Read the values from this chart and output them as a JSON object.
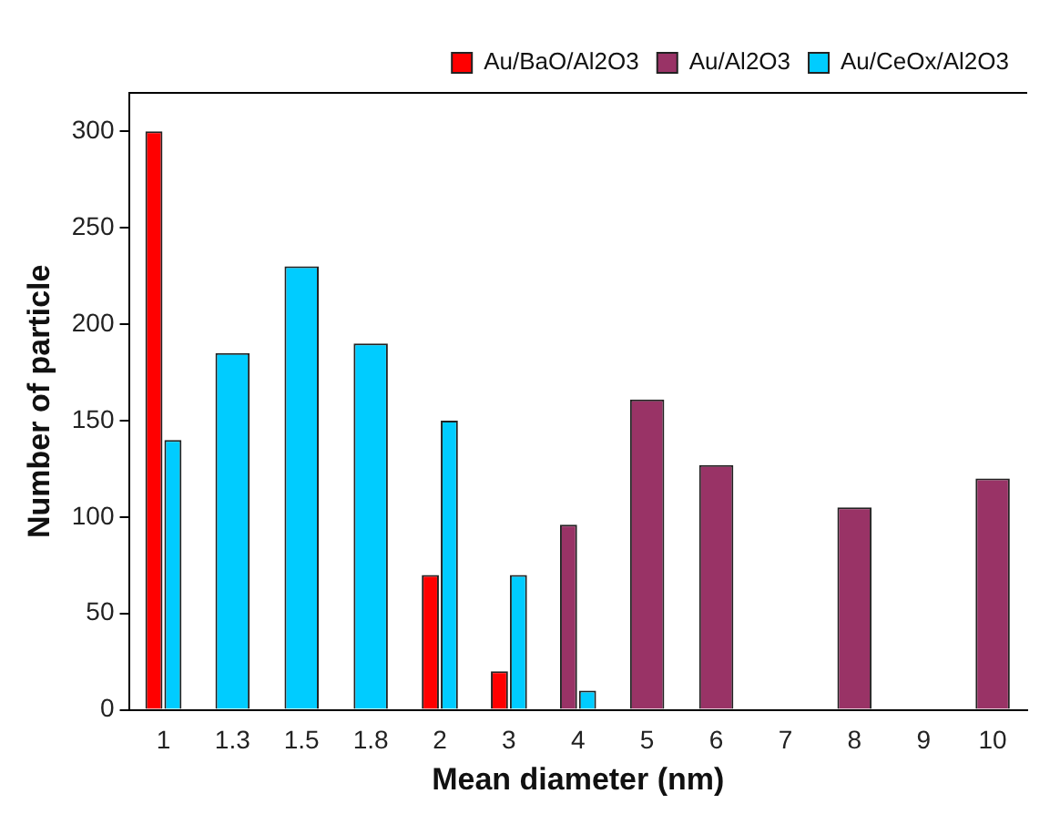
{
  "chart_data": {
    "type": "bar",
    "xlabel": "Mean diameter (nm)",
    "ylabel": "Number of particle",
    "categories": [
      "1",
      "1.3",
      "1.5",
      "1.8",
      "2",
      "3",
      "4",
      "5",
      "6",
      "7",
      "8",
      "9",
      "10"
    ],
    "series": [
      {
        "name": "Au/BaO/Al2O3",
        "color": "#ff0000",
        "values": [
          300,
          null,
          null,
          null,
          70,
          20,
          null,
          null,
          null,
          null,
          null,
          null,
          null
        ]
      },
      {
        "name": "Au/Al2O3",
        "color": "#993366",
        "values": [
          null,
          null,
          null,
          null,
          null,
          null,
          96,
          161,
          127,
          null,
          105,
          null,
          120
        ]
      },
      {
        "name": "Au/CeOx/Al2O3",
        "color": "#00ccff",
        "values": [
          140,
          185,
          230,
          190,
          150,
          70,
          10,
          null,
          null,
          null,
          null,
          null,
          null
        ]
      }
    ],
    "ylim": [
      0,
      320
    ],
    "yticks": [
      0,
      50,
      100,
      150,
      200,
      250,
      300
    ],
    "grid": false,
    "legend": "top"
  }
}
